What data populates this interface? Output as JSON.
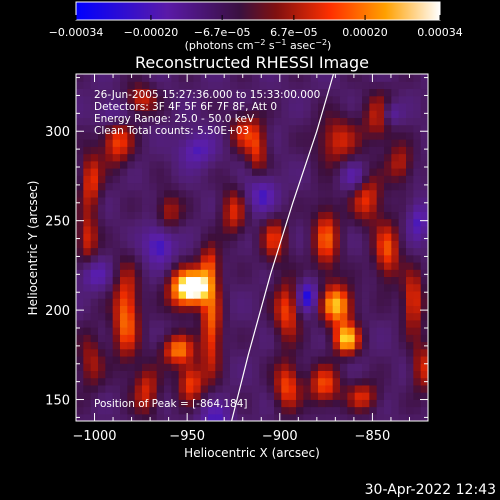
{
  "chart_data": {
    "type": "heatmap",
    "title": "Reconstructed RHESSI Image",
    "xlabel": "Heliocentric X (arcsec)",
    "ylabel": "Heliocentric Y (arcsec)",
    "xlim": [
      -1010,
      -820
    ],
    "ylim": [
      138,
      332
    ],
    "x_ticks": [
      -1000,
      -950,
      -900,
      -850
    ],
    "x_tick_labels": [
      "−1000",
      "−950",
      "−900",
      "−850"
    ],
    "y_ticks": [
      150,
      200,
      250,
      300
    ],
    "y_tick_labels": [
      "150",
      "200",
      "250",
      "300"
    ],
    "colorbar": {
      "min": -0.00034,
      "max": 0.00034,
      "ticks": [
        -0.00034,
        -0.0002,
        -6.7e-05,
        6.7e-05,
        0.0002,
        0.00034
      ],
      "tick_labels": [
        "−0.00034",
        "−0.00020",
        "−6.7e−05",
        "6.7e−05",
        "0.00020",
        "0.00034"
      ],
      "unit_main": "(photons cm",
      "unit_sup1": "−2",
      "unit_mid": " s",
      "unit_sup2": "−1",
      "unit_end": " asec",
      "unit_sup3": "−2",
      "unit_close": ")"
    },
    "annotations": [
      "26-Jun-2005 15:27:36.000 to 15:33:00.000",
      "Detectors: 3F 4F 5F 6F 7F 8F, Att 0",
      "Energy Range: 25.0 - 50.0 keV",
      "Clean    Total counts: 5.50E+03"
    ],
    "peak_label": "Position of Peak = [-864,184]",
    "peak": [
      -864,
      184
    ],
    "limb_curve": {
      "points": [
        [
          -926,
          138
        ],
        [
          -917,
          175
        ],
        [
          -905,
          220
        ],
        [
          -893,
          260
        ],
        [
          -880,
          300
        ],
        [
          -871,
          332
        ]
      ]
    },
    "grid": false,
    "colormap": "blue-purple-red-yellow-white",
    "grid_size": [
      48,
      48
    ],
    "hot_spots": [
      {
        "x": -952,
        "y": 212,
        "amp": 0.00034,
        "sx": 6,
        "sy": 8
      },
      {
        "x": -944,
        "y": 213,
        "amp": 0.00029,
        "sx": 5,
        "sy": 6
      },
      {
        "x": -955,
        "y": 178,
        "amp": 0.00026,
        "sx": 6,
        "sy": 6
      },
      {
        "x": -948,
        "y": 160,
        "amp": 0.00022,
        "sx": 5,
        "sy": 8
      },
      {
        "x": -937,
        "y": 190,
        "amp": 0.00024,
        "sx": 4,
        "sy": 18
      },
      {
        "x": -938,
        "y": 225,
        "amp": 0.0002,
        "sx": 4,
        "sy": 8
      },
      {
        "x": -925,
        "y": 255,
        "amp": 0.00018,
        "sx": 5,
        "sy": 10
      },
      {
        "x": -912,
        "y": 290,
        "amp": 0.00018,
        "sx": 4,
        "sy": 12
      },
      {
        "x": -903,
        "y": 240,
        "amp": 0.00018,
        "sx": 5,
        "sy": 10
      },
      {
        "x": -896,
        "y": 200,
        "amp": 0.00022,
        "sx": 5,
        "sy": 12
      },
      {
        "x": -896,
        "y": 158,
        "amp": 0.00022,
        "sx": 5,
        "sy": 10
      },
      {
        "x": -875,
        "y": 240,
        "amp": 0.00022,
        "sx": 5,
        "sy": 14
      },
      {
        "x": -869,
        "y": 203,
        "amp": 0.00032,
        "sx": 6,
        "sy": 8
      },
      {
        "x": -864,
        "y": 184,
        "amp": 0.00033,
        "sx": 5,
        "sy": 6
      },
      {
        "x": -876,
        "y": 158,
        "amp": 0.00022,
        "sx": 6,
        "sy": 8
      },
      {
        "x": -869,
        "y": 295,
        "amp": 0.00018,
        "sx": 8,
        "sy": 10
      },
      {
        "x": -853,
        "y": 263,
        "amp": 0.0002,
        "sx": 6,
        "sy": 10
      },
      {
        "x": -842,
        "y": 233,
        "amp": 0.00022,
        "sx": 5,
        "sy": 12
      },
      {
        "x": -828,
        "y": 205,
        "amp": 0.00022,
        "sx": 4,
        "sy": 12
      },
      {
        "x": -846,
        "y": 308,
        "amp": 0.00018,
        "sx": 6,
        "sy": 10
      },
      {
        "x": -835,
        "y": 282,
        "amp": 0.00016,
        "sx": 5,
        "sy": 8
      },
      {
        "x": -983,
        "y": 198,
        "amp": 0.00026,
        "sx": 5,
        "sy": 18
      },
      {
        "x": -1002,
        "y": 272,
        "amp": 0.0002,
        "sx": 4,
        "sy": 12
      },
      {
        "x": -1004,
        "y": 240,
        "amp": 0.00018,
        "sx": 4,
        "sy": 10
      },
      {
        "x": -988,
        "y": 295,
        "amp": 0.00022,
        "sx": 6,
        "sy": 10
      },
      {
        "x": -975,
        "y": 318,
        "amp": 0.00018,
        "sx": 6,
        "sy": 6
      },
      {
        "x": -960,
        "y": 255,
        "amp": 0.00016,
        "sx": 5,
        "sy": 8
      },
      {
        "x": -972,
        "y": 155,
        "amp": 0.00018,
        "sx": 5,
        "sy": 10
      },
      {
        "x": -1002,
        "y": 172,
        "amp": 0.00014,
        "sx": 5,
        "sy": 12
      },
      {
        "x": -920,
        "y": 300,
        "amp": 0.00016,
        "sx": 5,
        "sy": 8
      },
      {
        "x": -855,
        "y": 152,
        "amp": 0.00018,
        "sx": 6,
        "sy": 6
      },
      {
        "x": -823,
        "y": 168,
        "amp": 0.00018,
        "sx": 4,
        "sy": 10
      }
    ],
    "cold_spots": [
      {
        "x": -965,
        "y": 237,
        "amp": -0.0002,
        "sx": 6,
        "sy": 8
      },
      {
        "x": -1000,
        "y": 220,
        "amp": -0.00014,
        "sx": 6,
        "sy": 6
      },
      {
        "x": -910,
        "y": 265,
        "amp": -0.00018,
        "sx": 6,
        "sy": 8
      },
      {
        "x": -885,
        "y": 208,
        "amp": -0.00024,
        "sx": 4,
        "sy": 6
      },
      {
        "x": -840,
        "y": 310,
        "amp": -0.00018,
        "sx": 4,
        "sy": 5
      },
      {
        "x": -935,
        "y": 140,
        "amp": -0.00016,
        "sx": 6,
        "sy": 6
      },
      {
        "x": -860,
        "y": 275,
        "amp": -0.00016,
        "sx": 5,
        "sy": 6
      },
      {
        "x": -990,
        "y": 310,
        "amp": -0.00014,
        "sx": 6,
        "sy": 6
      },
      {
        "x": -945,
        "y": 290,
        "amp": -0.00016,
        "sx": 7,
        "sy": 7
      },
      {
        "x": -825,
        "y": 250,
        "amp": -0.00016,
        "sx": 4,
        "sy": 8
      }
    ]
  },
  "footer": {
    "timestamp": "30-Apr-2022 12:43"
  }
}
